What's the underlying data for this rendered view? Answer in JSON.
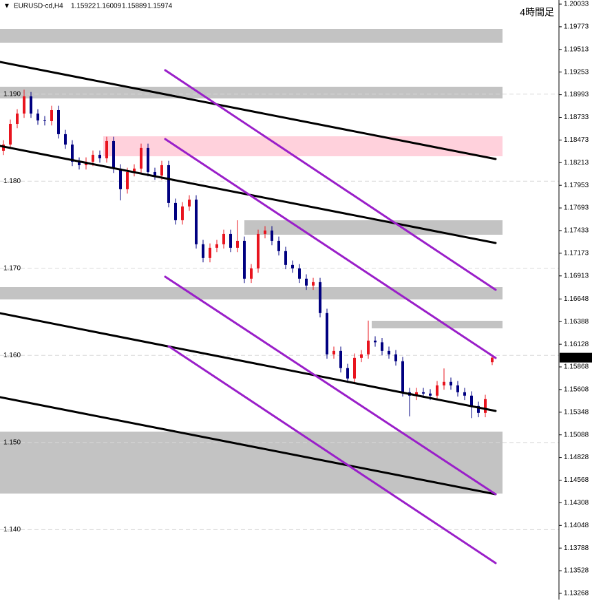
{
  "chart_data": {
    "type": "candlestick",
    "symbol": "EURUSD-cd,H4",
    "timeframe": "4時間足",
    "up_color": "#e8141e",
    "down_color": "#000080",
    "ylim": [
      1.13268,
      1.20033
    ],
    "yticks": [
      1.20033,
      1.19773,
      1.19513,
      1.19253,
      1.18993,
      1.18733,
      1.18473,
      1.18213,
      1.17953,
      1.17693,
      1.17433,
      1.17173,
      1.16913,
      1.16648,
      1.16388,
      1.16128,
      1.15868,
      1.15608,
      1.15348,
      1.15088,
      1.14828,
      1.14568,
      1.14308,
      1.14048,
      1.13788,
      1.13528,
      1.13268
    ],
    "y_levels": [
      {
        "value": 1.19,
        "label": "1.190"
      },
      {
        "value": 1.18,
        "label": "1.180"
      },
      {
        "value": 1.17,
        "label": "1.170"
      },
      {
        "value": 1.16,
        "label": "1.160"
      },
      {
        "value": 1.15,
        "label": "1.150"
      },
      {
        "value": 1.14,
        "label": "1.140"
      }
    ],
    "open": [
      1.1835,
      1.18421,
      1.18658,
      1.18777,
      1.18974,
      1.18777,
      1.18698,
      1.1869,
      1.18816,
      1.1854,
      1.18421,
      1.18224,
      1.18184,
      1.18224,
      1.18303,
      1.18263,
      1.18461,
      1.18145,
      1.17908,
      1.18105,
      1.18145,
      1.18382,
      1.18105,
      1.18066,
      1.18184,
      1.1775,
      1.17552,
      1.1771,
      1.17789,
      1.17276,
      1.17118,
      1.17236,
      1.17276,
      1.17394,
      1.17236,
      1.17315,
      1.16881,
      1.16999,
      1.17394,
      1.17434,
      1.17315,
      1.17197,
      1.17039,
      1.16999,
      1.16881,
      1.16802,
      1.16841,
      1.16486,
      1.16012,
      1.16051,
      1.15854,
      1.15735,
      1.15972,
      1.16012,
      1.1617,
      1.1615,
      1.16051,
      1.16012,
      1.15933,
      1.15577,
      1.15538,
      1.15577,
      1.15562,
      1.15538,
      1.15656,
      1.15696,
      1.15656,
      1.15577,
      1.15538,
      1.15419,
      1.1534,
      1.15922
    ],
    "high": [
      1.18471,
      1.18708,
      1.18827,
      1.1905,
      1.19024,
      1.18827,
      1.18748,
      1.18866,
      1.18866,
      1.1859,
      1.18471,
      1.18274,
      1.18274,
      1.18353,
      1.18353,
      1.18511,
      1.18511,
      1.18195,
      1.18155,
      1.18195,
      1.18432,
      1.18432,
      1.18155,
      1.18234,
      1.18234,
      1.178,
      1.1776,
      1.17839,
      1.17839,
      1.17326,
      1.17286,
      1.17326,
      1.17444,
      1.17444,
      1.17551,
      1.17365,
      1.17049,
      1.17444,
      1.17484,
      1.17484,
      1.17365,
      1.17247,
      1.17089,
      1.17049,
      1.16931,
      1.16891,
      1.16891,
      1.16536,
      1.16101,
      1.16101,
      1.15904,
      1.16022,
      1.16062,
      1.164,
      1.1622,
      1.162,
      1.16101,
      1.16062,
      1.15983,
      1.15627,
      1.15627,
      1.15627,
      1.15612,
      1.15706,
      1.1585,
      1.15746,
      1.15706,
      1.15627,
      1.15588,
      1.15469,
      1.15548,
      1.16009
    ],
    "low": [
      1.183,
      1.18371,
      1.18608,
      1.18727,
      1.18727,
      1.18648,
      1.1864,
      1.1864,
      1.1849,
      1.18371,
      1.18174,
      1.18134,
      1.18134,
      1.18174,
      1.18213,
      1.18213,
      1.18095,
      1.1778,
      1.17858,
      1.18055,
      1.18095,
      1.18055,
      1.18016,
      1.18016,
      1.177,
      1.17502,
      1.17502,
      1.1766,
      1.17226,
      1.17068,
      1.17068,
      1.17186,
      1.17226,
      1.17186,
      1.17186,
      1.1683,
      1.16831,
      1.16949,
      1.17344,
      1.17265,
      1.17147,
      1.16989,
      1.16949,
      1.16831,
      1.16752,
      1.16752,
      1.16436,
      1.15962,
      1.15962,
      1.15804,
      1.15685,
      1.15685,
      1.15922,
      1.15962,
      1.161,
      1.16001,
      1.15962,
      1.15883,
      1.15527,
      1.153,
      1.15488,
      1.15512,
      1.15488,
      1.15488,
      1.15606,
      1.15606,
      1.15527,
      1.15488,
      1.1528,
      1.1529,
      1.1529,
      1.15889
    ],
    "close": [
      1.18421,
      1.18658,
      1.18777,
      1.18974,
      1.18777,
      1.18698,
      1.1869,
      1.18816,
      1.1854,
      1.18421,
      1.18224,
      1.18184,
      1.18224,
      1.18303,
      1.18263,
      1.18461,
      1.18145,
      1.17908,
      1.18105,
      1.18145,
      1.18382,
      1.18105,
      1.18066,
      1.18184,
      1.1775,
      1.17552,
      1.1771,
      1.17789,
      1.17276,
      1.17118,
      1.17236,
      1.17276,
      1.17394,
      1.17236,
      1.17315,
      1.16881,
      1.16999,
      1.17394,
      1.17434,
      1.17315,
      1.17197,
      1.17039,
      1.16999,
      1.16881,
      1.16802,
      1.16841,
      1.16486,
      1.16012,
      1.16051,
      1.15854,
      1.15735,
      1.15972,
      1.16012,
      1.1617,
      1.1615,
      1.16051,
      1.16012,
      1.15933,
      1.15577,
      1.15538,
      1.15577,
      1.15562,
      1.15538,
      1.15656,
      1.15696,
      1.15656,
      1.15577,
      1.15538,
      1.15419,
      1.1534,
      1.15498,
      1.15974
    ]
  }
}
